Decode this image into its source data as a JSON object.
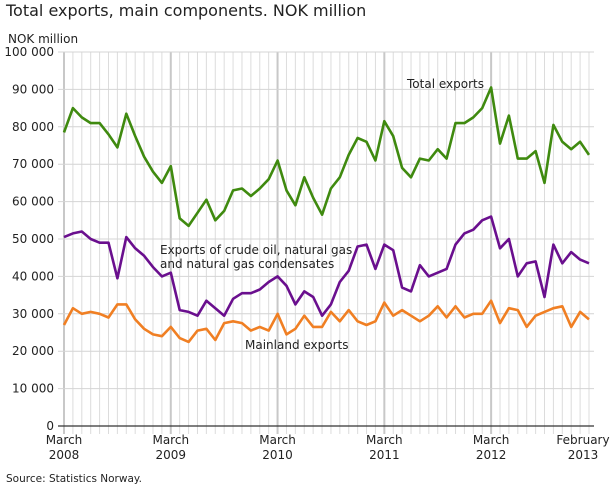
{
  "chart_data": {
    "type": "line",
    "title": "Total exports, main components. NOK million",
    "ylabel": "NOK million",
    "xlabel": "",
    "ylim": [
      0,
      100000
    ],
    "yticks": [
      "0",
      "10 000",
      "20 000",
      "30 000",
      "40 000",
      "50 000",
      "60 000",
      "70 000",
      "80 000",
      "90 000",
      "100 000"
    ],
    "xticks": [
      {
        "month": "March",
        "year": "2008",
        "index": 0
      },
      {
        "month": "March",
        "year": "2009",
        "index": 12
      },
      {
        "month": "March",
        "year": "2010",
        "index": 24
      },
      {
        "month": "March",
        "year": "2011",
        "index": 36
      },
      {
        "month": "March",
        "year": "2012",
        "index": 48
      },
      {
        "month": "February",
        "year": "2013",
        "index": 59
      }
    ],
    "x_range": "March 2008 – February 2013 (monthly)",
    "grid": true,
    "series": [
      {
        "name": "Total exports",
        "label_lines": [
          "Total exports"
        ],
        "color": "#3f8a0f",
        "values": [
          78500,
          85000,
          82500,
          81000,
          81000,
          78000,
          74500,
          83500,
          77500,
          72000,
          68000,
          65000,
          69500,
          55500,
          53500,
          57000,
          60500,
          55000,
          57500,
          63000,
          63500,
          61500,
          63500,
          66000,
          71000,
          63000,
          59000,
          66500,
          61000,
          56500,
          63500,
          66500,
          72500,
          77000,
          76000,
          71000,
          81500,
          77500,
          69000,
          66500,
          71500,
          71000,
          74000,
          71500,
          81000,
          81000,
          82500,
          85000,
          90500,
          75500,
          83000,
          71500,
          71500,
          73500,
          65000,
          80500,
          76000,
          74000,
          76000,
          72500
        ]
      },
      {
        "name": "Exports of crude oil, natural gas and natural gas condensates",
        "label_lines": [
          "Exports of crude oil, natural gas",
          "and natural gas condensates"
        ],
        "color": "#6a0f8e",
        "values": [
          50500,
          51500,
          52000,
          50000,
          49000,
          49000,
          39500,
          50500,
          47500,
          45500,
          42500,
          40000,
          41000,
          31000,
          30500,
          29500,
          33500,
          31500,
          29500,
          34000,
          35500,
          35500,
          36500,
          38500,
          40000,
          37500,
          32500,
          36000,
          34500,
          29500,
          32500,
          38500,
          41500,
          48000,
          48500,
          42000,
          48500,
          47000,
          37000,
          36000,
          43000,
          40000,
          41000,
          42000,
          48500,
          51500,
          52500,
          55000,
          56000,
          47500,
          50000,
          40000,
          43500,
          44000,
          34500,
          48500,
          43500,
          46500,
          44500,
          43500
        ]
      },
      {
        "name": "Mainland exports",
        "label_lines": [
          "Mainland exports"
        ],
        "color": "#f07f23",
        "values": [
          27000,
          31500,
          30000,
          30500,
          30000,
          29000,
          32500,
          32500,
          28500,
          26000,
          24500,
          24000,
          26500,
          23500,
          22500,
          25500,
          26000,
          23000,
          27500,
          28000,
          27500,
          25500,
          26500,
          25500,
          30000,
          24500,
          26000,
          29500,
          26500,
          26500,
          30500,
          28000,
          31000,
          28000,
          27000,
          28000,
          33000,
          29500,
          31000,
          29500,
          28000,
          29500,
          32000,
          29000,
          32000,
          29000,
          30000,
          30000,
          33500,
          27500,
          31500,
          31000,
          26500,
          29500,
          30500,
          31500,
          32000,
          26500,
          30500,
          28500
        ]
      }
    ]
  },
  "source": "Source: Statistics Norway."
}
